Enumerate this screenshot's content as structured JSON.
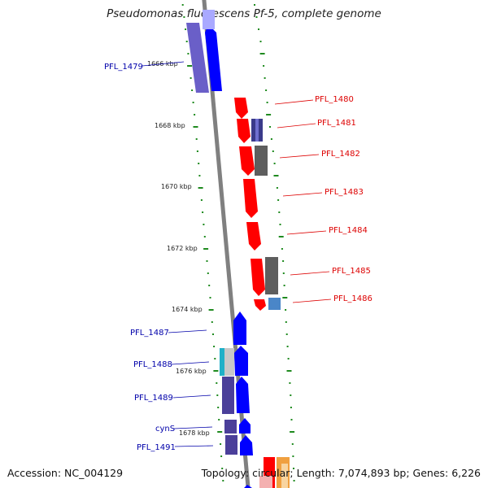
{
  "title": "Pseudomonas fluorescens Pf-5, complete genome",
  "footer": {
    "accession": "Accession: NC_004129",
    "summary": "Topology: circular; Length: 7,074,893 bp; Genes: 6,226"
  },
  "colors": {
    "backbone": "#808080",
    "forward_gene": "#0000ff",
    "reverse_gene": "#ff0000",
    "forward_label": "#0000aa",
    "reverse_label": "#dd0000",
    "tick": "#1f8a1f",
    "feature_purple": "#4b3f9a",
    "feature_grey": "#5e5e5e",
    "feature_cyan": "#1fb0c8",
    "feature_steelblue": "#4a86c8",
    "feature_orange": "#f0a040",
    "feature_pink": "#f4b0b0"
  },
  "scale_labels": [
    "1666 kbp",
    "1668 kbp",
    "1670 kbp",
    "1672 kbp",
    "1674 kbp",
    "1676 kbp",
    "1678 kbp"
  ],
  "forward_gene_labels": [
    "PFL_1479",
    "PFL_1487",
    "PFL_1488",
    "PFL_1489",
    "cynS",
    "PFL_1491"
  ],
  "reverse_gene_labels": [
    "PFL_1480",
    "PFL_1481",
    "PFL_1482",
    "PFL_1483",
    "PFL_1484",
    "PFL_1485",
    "PFL_1486"
  ]
}
